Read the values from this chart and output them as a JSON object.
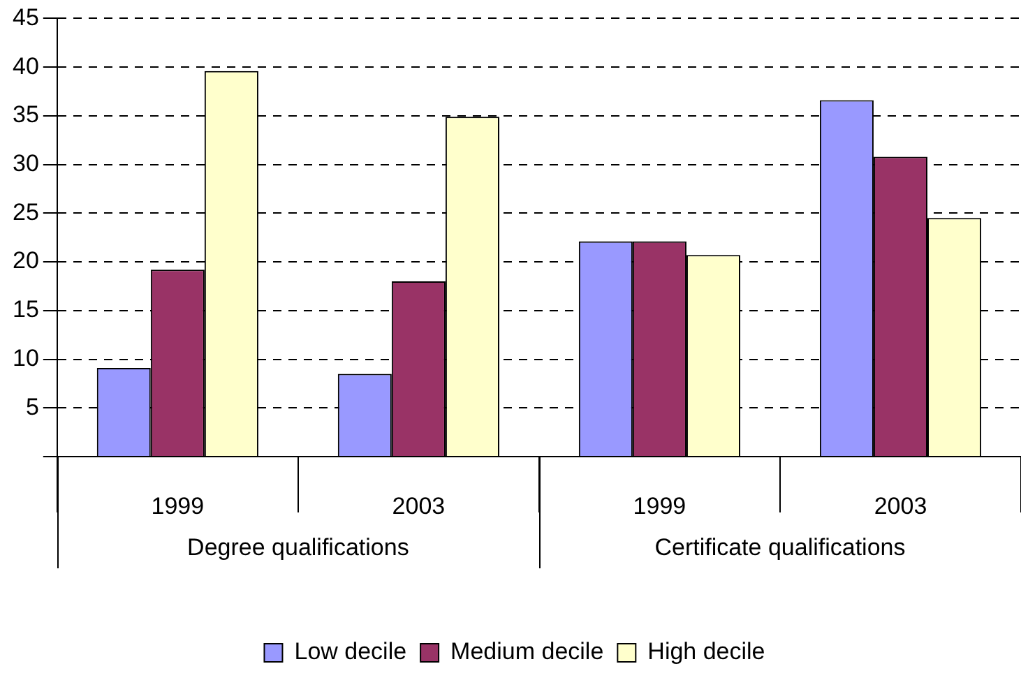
{
  "chart_data": {
    "type": "bar",
    "categories": [
      "1999",
      "2003",
      "1999",
      "2003"
    ],
    "series": [
      {
        "name": "Low decile",
        "color": "#9999ff",
        "values": [
          9.1,
          8.5,
          22.1,
          36.6
        ]
      },
      {
        "name": "Medium decile",
        "color": "#993366",
        "values": [
          19.2,
          18.0,
          22.1,
          30.8
        ]
      },
      {
        "name": "High decile",
        "color": "#ffffcc",
        "values": [
          39.6,
          34.9,
          20.7,
          24.5
        ]
      }
    ],
    "annotations": [
      "Degree qualifications",
      "Certificate qualifications"
    ],
    "ylim": [
      0,
      45
    ],
    "yticks": [
      {
        "value": 0,
        "label": null
      },
      5,
      10,
      15,
      20,
      25,
      30,
      35,
      40,
      45
    ],
    "grid": "y",
    "legend": "bottom"
  }
}
